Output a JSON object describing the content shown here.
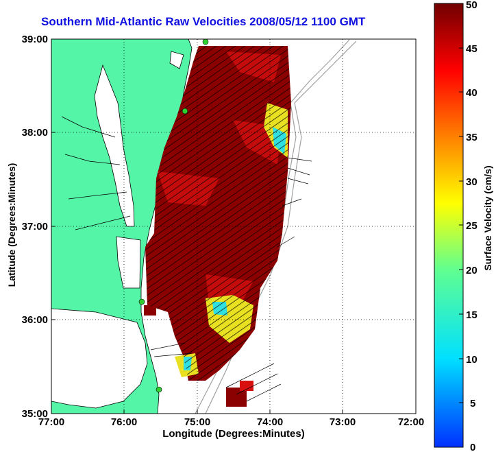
{
  "title": "Southern Mid-Atlantic Raw Velocities 2008/05/12 1100 GMT",
  "x_axis": {
    "label": "Longitude (Degrees:Minutes)",
    "ticks": [
      "77:00",
      "76:00",
      "75:00",
      "74:00",
      "73:00",
      "72:00"
    ]
  },
  "y_axis": {
    "label": "Latitude (Degrees:Minutes)",
    "ticks": [
      "39:00",
      "38:00",
      "37:00",
      "36:00",
      "35:00"
    ]
  },
  "colorbar": {
    "label": "Surface Velocity (cm/s)",
    "ticks": [
      "50",
      "45",
      "40",
      "35",
      "30",
      "25",
      "20",
      "15",
      "10",
      "5",
      "0"
    ],
    "range": [
      0,
      50
    ]
  },
  "colors": {
    "land": "#55f5a8",
    "coastline": "#000000",
    "bathymetry": "#a0a0a0",
    "high_velocity": "#8b0000",
    "title": "#1010e0"
  },
  "map_extent": {
    "lon": [
      -77,
      -72
    ],
    "lat": [
      35,
      39
    ]
  },
  "grid": true
}
